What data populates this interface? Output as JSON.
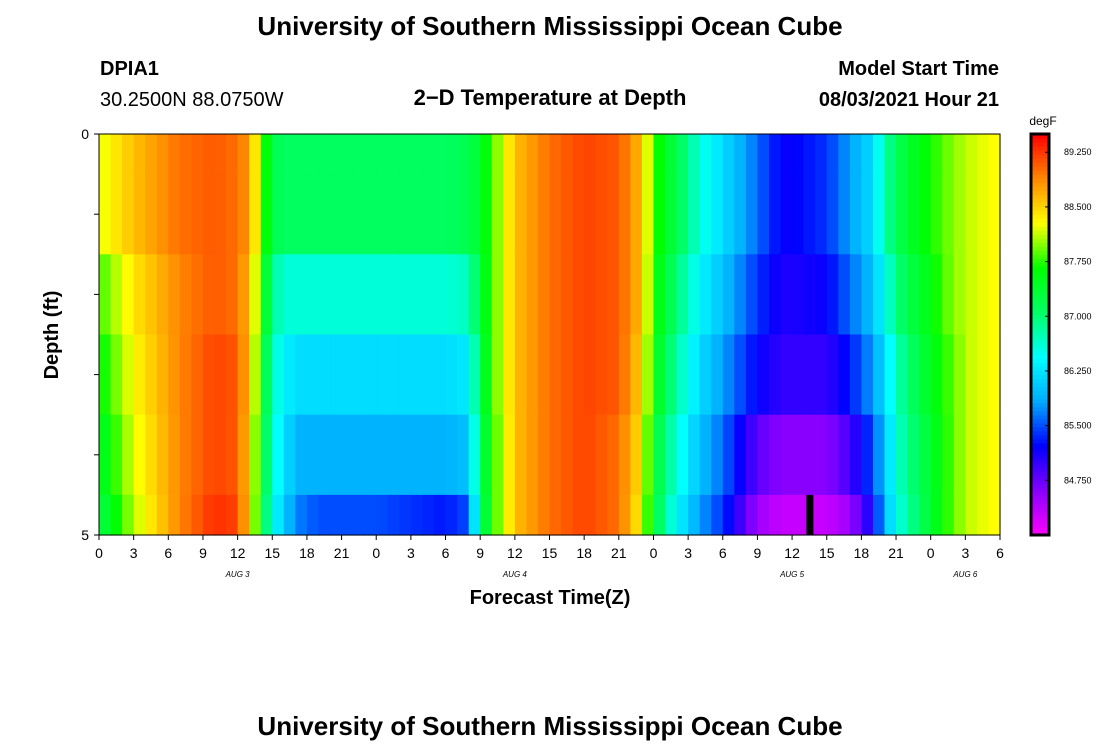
{
  "header": {
    "title": "University of Southern Mississippi Ocean Cube",
    "station": "DPIA1",
    "location": "30.2500N  88.0750W",
    "subtitle": "2−D Temperature at Depth",
    "model_label": "Model Start Time",
    "model_time": "08/03/2021 Hour 21"
  },
  "footer": {
    "title": "University of Southern Mississippi Ocean Cube"
  },
  "chart_data": {
    "type": "heatmap",
    "xlabel": "Forecast Time(Z)",
    "ylabel": "Depth (ft)",
    "x_tick_labels": [
      "0",
      "3",
      "6",
      "9",
      "12",
      "15",
      "18",
      "21",
      "0",
      "3",
      "6",
      "9",
      "12",
      "15",
      "18",
      "21",
      "0",
      "3",
      "6",
      "9",
      "12",
      "15",
      "18",
      "21",
      "0",
      "3",
      "6"
    ],
    "date_labels": [
      {
        "label": "AUG  3",
        "tick_index": 4
      },
      {
        "label": "AUG  4",
        "tick_index": 12
      },
      {
        "label": "AUG  5",
        "tick_index": 20
      },
      {
        "label": "AUG  6",
        "tick_index": 25
      }
    ],
    "ylim": [
      0,
      5
    ],
    "y_tick_labels": [
      "0",
      "5"
    ],
    "y_minor_ticks": [
      1,
      2,
      3,
      4
    ],
    "depth_rows": 5,
    "hours_per_tick": 3,
    "hours": [
      0,
      78
    ],
    "colorbar": {
      "unit": "degF",
      "range": [
        84.0,
        89.5
      ],
      "tick_labels": [
        "89.250",
        "88.500",
        "87.750",
        "87.000",
        "86.250",
        "85.500",
        "84.750"
      ],
      "tick_values": [
        89.25,
        88.5,
        87.75,
        87.0,
        86.25,
        85.5,
        84.75
      ],
      "colors": [
        "#ff00ff",
        "#8800ff",
        "#0000ff",
        "#00aaff",
        "#00ffff",
        "#00ff66",
        "#00ff00",
        "#ffff00",
        "#ff8800",
        "#ff0000"
      ]
    },
    "marker": {
      "hour": 61.5,
      "depth_from": 4.5,
      "depth_to": 5.0,
      "color": "#000000"
    },
    "profiles": {
      "hours": [
        0,
        3,
        7,
        10,
        12,
        13,
        14,
        15,
        16,
        17,
        18,
        19,
        21,
        24,
        27,
        30,
        32,
        33,
        34,
        36,
        39,
        42,
        45,
        47,
        48,
        50,
        52,
        54,
        57,
        59,
        60,
        63,
        65,
        67,
        68,
        69,
        70,
        72,
        74,
        75,
        76,
        78
      ],
      "rows": [
        [
          88.2,
          88.6,
          89.0,
          89.1,
          89.0,
          88.8,
          88.0,
          87.2,
          87.1,
          87.1,
          87.1,
          87.1,
          87.1,
          87.1,
          87.1,
          87.1,
          87.2,
          87.4,
          87.8,
          88.6,
          89.0,
          89.2,
          89.1,
          88.6,
          87.8,
          87.2,
          86.6,
          86.2,
          85.6,
          85.2,
          85.2,
          85.4,
          85.8,
          86.2,
          86.8,
          87.1,
          87.4,
          87.7,
          88.0,
          88.1,
          88.2,
          88.3
        ],
        [
          87.8,
          88.4,
          88.9,
          89.1,
          89.0,
          88.6,
          87.8,
          86.9,
          86.6,
          86.6,
          86.6,
          86.6,
          86.6,
          86.6,
          86.6,
          86.6,
          86.7,
          87.3,
          87.8,
          88.6,
          89.0,
          89.2,
          89.1,
          88.6,
          87.7,
          87.0,
          86.4,
          86.0,
          85.4,
          85.1,
          85.1,
          85.2,
          85.6,
          86.0,
          86.5,
          86.9,
          87.2,
          87.6,
          88.0,
          88.1,
          88.2,
          88.3
        ],
        [
          87.6,
          88.3,
          88.9,
          89.2,
          89.1,
          88.6,
          87.6,
          86.7,
          86.4,
          86.2,
          86.2,
          86.2,
          86.2,
          86.2,
          86.2,
          86.2,
          86.3,
          87.2,
          87.8,
          88.6,
          89.0,
          89.2,
          89.1,
          88.5,
          87.6,
          86.8,
          86.2,
          85.8,
          85.2,
          85.0,
          85.0,
          85.0,
          85.3,
          85.8,
          86.2,
          86.7,
          87.0,
          87.5,
          87.9,
          88.1,
          88.2,
          88.3
        ],
        [
          87.4,
          88.2,
          88.9,
          89.2,
          89.1,
          88.5,
          87.5,
          86.6,
          86.3,
          85.9,
          85.9,
          85.9,
          85.9,
          85.9,
          85.9,
          85.9,
          86.0,
          87.1,
          87.7,
          88.6,
          89.0,
          89.2,
          89.0,
          88.4,
          87.4,
          86.6,
          86.0,
          85.6,
          84.8,
          84.6,
          84.6,
          84.6,
          84.9,
          85.5,
          86.0,
          86.6,
          86.9,
          87.4,
          87.9,
          88.1,
          88.2,
          88.3
        ],
        [
          87.2,
          88.1,
          88.9,
          89.3,
          89.2,
          88.5,
          87.4,
          86.5,
          86.1,
          85.7,
          85.6,
          85.5,
          85.5,
          85.5,
          85.4,
          85.3,
          85.5,
          87.0,
          87.7,
          88.6,
          89.0,
          89.2,
          89.0,
          88.3,
          87.3,
          86.4,
          85.8,
          85.4,
          84.5,
          84.3,
          84.3,
          84.3,
          84.5,
          85.2,
          85.9,
          86.5,
          86.8,
          87.4,
          87.9,
          88.1,
          88.2,
          88.3
        ]
      ]
    }
  }
}
